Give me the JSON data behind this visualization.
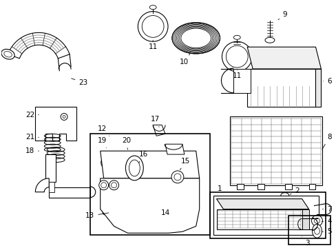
{
  "bg": "#ffffff",
  "lc": "#000000",
  "fw": 4.89,
  "fh": 3.6,
  "dpi": 100,
  "fs": 7.5
}
